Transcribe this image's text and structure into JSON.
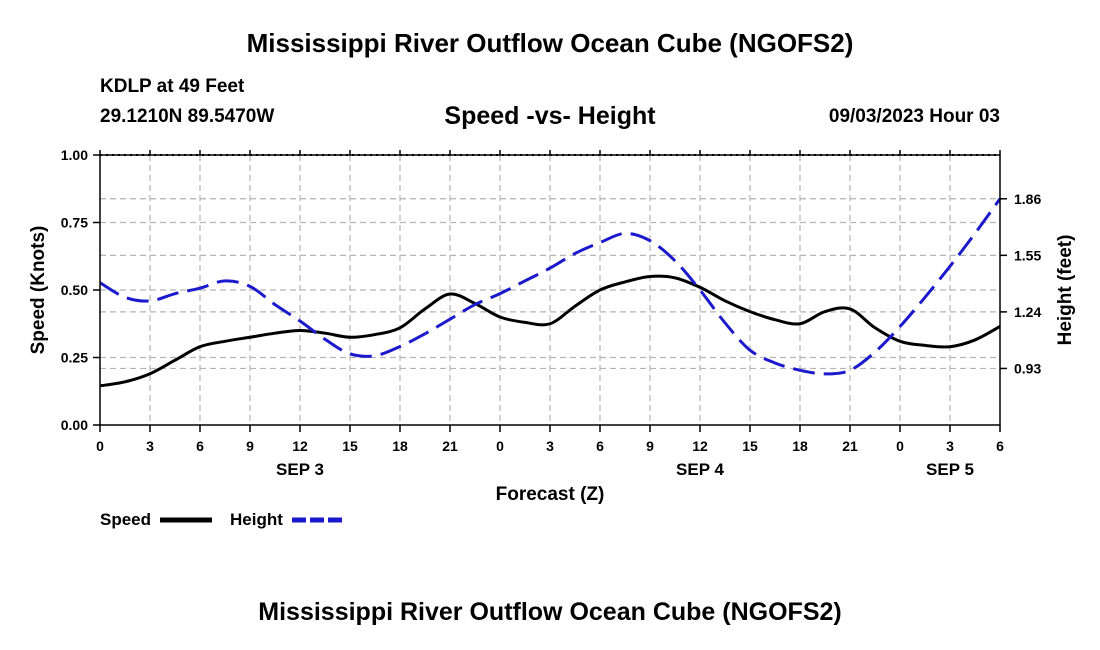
{
  "title": "Mississippi River Outflow Ocean Cube (NGOFS2)",
  "station": {
    "name_line": "KDLP at 49 Feet",
    "coords_line": "29.1210N  89.5470W"
  },
  "datetime": "09/03/2023 Hour 03",
  "footer_title": "Mississippi River Outflow Ocean Cube (NGOFS2)",
  "legend": {
    "speed_label": "Speed",
    "height_label": "Height"
  },
  "colors": {
    "speed": "#000000",
    "height": "#1a1acc",
    "grid": "#b4b4b4"
  },
  "chart_data": {
    "type": "line",
    "title": "Speed -vs- Height",
    "xlabel": "Forecast (Z)",
    "ylabel": "Speed (Knots)",
    "y2label": "Height (feet)",
    "x_range": [
      0,
      54
    ],
    "x_ticks": [
      0,
      3,
      6,
      9,
      12,
      15,
      18,
      21,
      24,
      27,
      30,
      33,
      36,
      39,
      42,
      45,
      48,
      51,
      54
    ],
    "x_tick_labels": [
      "0",
      "3",
      "6",
      "9",
      "12",
      "15",
      "18",
      "21",
      "0",
      "3",
      "6",
      "9",
      "12",
      "15",
      "18",
      "21",
      "0",
      "3",
      "6"
    ],
    "day_labels": [
      {
        "x": 12,
        "label": "SEP 3"
      },
      {
        "x": 36,
        "label": "SEP 4"
      },
      {
        "x": 51,
        "label": "SEP 5"
      }
    ],
    "y_range": [
      0,
      1
    ],
    "y_ticks": [
      0,
      0.25,
      0.5,
      0.75,
      1.0
    ],
    "y_tick_labels": [
      "0.00",
      "0.25",
      "0.50",
      "0.75",
      "1.00"
    ],
    "y2_range": [
      0.62,
      2.1
    ],
    "y2_ticks": [
      0.93,
      1.24,
      1.55,
      1.86
    ],
    "y2_tick_labels": [
      "0.93",
      "1.24",
      "1.55",
      "1.86"
    ],
    "grid": true,
    "series": [
      {
        "name": "Speed",
        "axis": "left",
        "style": "solid",
        "x": [
          0,
          1.5,
          3,
          4.5,
          6,
          7.5,
          9,
          10.5,
          12,
          13.5,
          15,
          16.5,
          18,
          19.5,
          21,
          22.5,
          24,
          25.5,
          27,
          28.5,
          30,
          31.5,
          33,
          34.5,
          36,
          37.5,
          39,
          40.5,
          42,
          43.5,
          45,
          46.5,
          48,
          49.5,
          51,
          52.5,
          54
        ],
        "values": [
          0.145,
          0.16,
          0.19,
          0.24,
          0.29,
          0.31,
          0.325,
          0.34,
          0.35,
          0.34,
          0.325,
          0.335,
          0.36,
          0.43,
          0.485,
          0.45,
          0.4,
          0.38,
          0.375,
          0.44,
          0.5,
          0.53,
          0.55,
          0.545,
          0.51,
          0.46,
          0.42,
          0.39,
          0.375,
          0.42,
          0.43,
          0.36,
          0.31,
          0.295,
          0.29,
          0.315,
          0.365
        ]
      },
      {
        "name": "Height",
        "axis": "right",
        "style": "dashed",
        "x": [
          0,
          1.5,
          3,
          4.5,
          6,
          7.5,
          9,
          10.5,
          12,
          13.5,
          15,
          16.5,
          18,
          19.5,
          21,
          22.5,
          24,
          25.5,
          27,
          28.5,
          30,
          31.5,
          33,
          34.5,
          36,
          37.5,
          39,
          40.5,
          42,
          43.5,
          45,
          46.5,
          48,
          49.5,
          51,
          52.5,
          54
        ],
        "values": [
          1.4,
          1.32,
          1.3,
          1.34,
          1.37,
          1.41,
          1.38,
          1.28,
          1.19,
          1.09,
          1.01,
          1.0,
          1.05,
          1.12,
          1.2,
          1.28,
          1.34,
          1.41,
          1.48,
          1.56,
          1.62,
          1.67,
          1.63,
          1.52,
          1.36,
          1.18,
          1.03,
          0.96,
          0.92,
          0.9,
          0.92,
          1.02,
          1.16,
          1.32,
          1.49,
          1.67,
          1.86
        ]
      }
    ]
  }
}
